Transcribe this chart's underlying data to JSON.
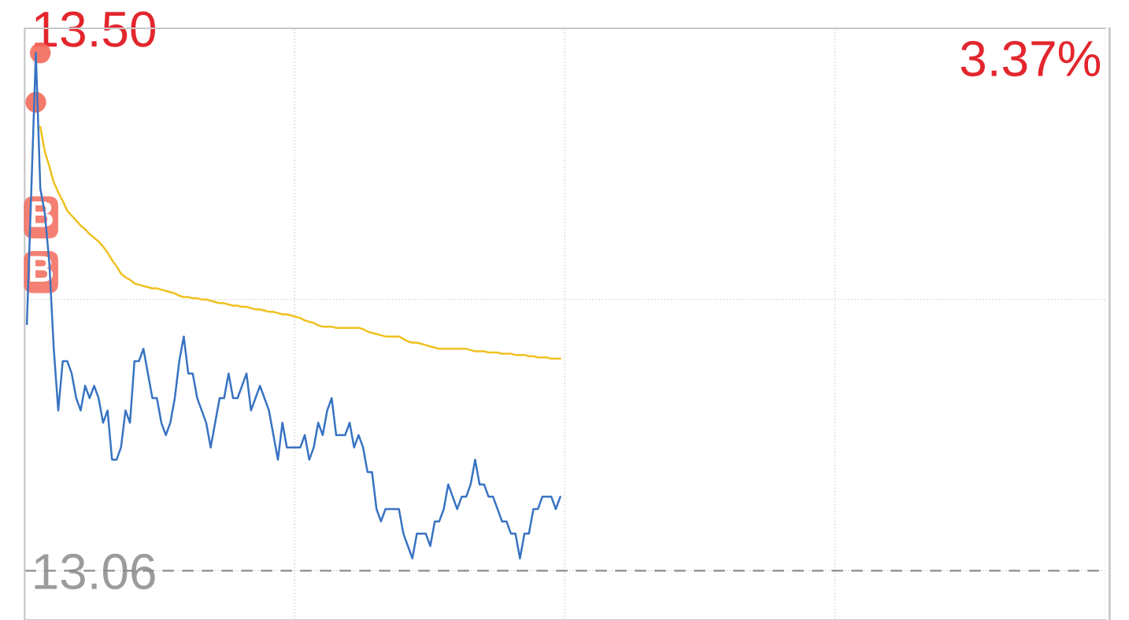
{
  "chart_data": {
    "type": "line",
    "categories": [
      null,
      null,
      null,
      null,
      null,
      null,
      null,
      null,
      null,
      null,
      null,
      null,
      null,
      null,
      null,
      null,
      null,
      null,
      null,
      null,
      null,
      null,
      null,
      null,
      null,
      null,
      null,
      null,
      null,
      null,
      null,
      null,
      null,
      null,
      null,
      null,
      null,
      null,
      null,
      null,
      null,
      null,
      null,
      null,
      null,
      null,
      null,
      null,
      null,
      null,
      null,
      null,
      null,
      null,
      null,
      null,
      null,
      null,
      null,
      null,
      null,
      null,
      null,
      null,
      null,
      null,
      null,
      null,
      null,
      null,
      null,
      null,
      null,
      null,
      null,
      null,
      null,
      null,
      null,
      null,
      null,
      null,
      null,
      null,
      null,
      null,
      null,
      null,
      null,
      null,
      null,
      null,
      null,
      null,
      null,
      null,
      null,
      null,
      null,
      null,
      null,
      null,
      null,
      null,
      null,
      null,
      null,
      null,
      null,
      null,
      null,
      null,
      null,
      null,
      null,
      null,
      null,
      null,
      null,
      null,
      null,
      null,
      null,
      null,
      null,
      null,
      null,
      null,
      null,
      null,
      null,
      null,
      null,
      null,
      null,
      null,
      null,
      null,
      null,
      null,
      null,
      null,
      null,
      null,
      null,
      null,
      null,
      null,
      null,
      null,
      null,
      null,
      null,
      null,
      null,
      null,
      null,
      null,
      null,
      null,
      null,
      null,
      null,
      null,
      null,
      null,
      null,
      null,
      null,
      null,
      null,
      null,
      null,
      null,
      null,
      null,
      null,
      null,
      null,
      null,
      null,
      null,
      null,
      null,
      null,
      null,
      null,
      null,
      null,
      null,
      null,
      null,
      null,
      null,
      null,
      null,
      null,
      null,
      null,
      null,
      null,
      null,
      null,
      null,
      null,
      null,
      null,
      null,
      null,
      null,
      null,
      null,
      null,
      null,
      null,
      null,
      null,
      null,
      null,
      null,
      null,
      null,
      null,
      null,
      null,
      null,
      null,
      null,
      null,
      null,
      null,
      null,
      null,
      null,
      null,
      null,
      null,
      null,
      null,
      null,
      null
    ],
    "series": [
      {
        "color": "#3873c2",
        "values": [
          13.26,
          13.37,
          13.48,
          13.37,
          13.35,
          13.31,
          13.24,
          13.19,
          13.23,
          13.23,
          13.22,
          13.2,
          13.19,
          13.21,
          13.2,
          13.21,
          13.2,
          13.18,
          13.19,
          13.15,
          13.15,
          13.16,
          13.19,
          13.18,
          13.23,
          13.23,
          13.24,
          13.22,
          13.2,
          13.2,
          13.18,
          13.17,
          13.18,
          13.2,
          13.23,
          13.25,
          13.22,
          13.22,
          13.2,
          13.19,
          13.18,
          13.16,
          13.18,
          13.2,
          13.2,
          13.22,
          13.2,
          13.2,
          13.21,
          13.22,
          13.19,
          13.2,
          13.21,
          13.2,
          13.19,
          13.17,
          13.15,
          13.18,
          13.16,
          13.16,
          13.16,
          13.16,
          13.17,
          13.15,
          13.16,
          13.18,
          13.17,
          13.19,
          13.2,
          13.17,
          13.17,
          13.17,
          13.18,
          13.16,
          13.17,
          13.16,
          13.14,
          13.14,
          13.11,
          13.1,
          13.11,
          13.11,
          13.11,
          13.11,
          13.09,
          13.08,
          13.07,
          13.09,
          13.09,
          13.09,
          13.08,
          13.1,
          13.1,
          13.11,
          13.13,
          13.12,
          13.11,
          13.12,
          13.12,
          13.13,
          13.15,
          13.13,
          13.13,
          13.12,
          13.12,
          13.11,
          13.1,
          13.1,
          13.09,
          13.09,
          13.07,
          13.09,
          13.09,
          13.11,
          13.11,
          13.12,
          13.12,
          13.12,
          13.11,
          13.12,
          null,
          null,
          null,
          null,
          null,
          null,
          null,
          null,
          null,
          null,
          null,
          null,
          null,
          null,
          null,
          null,
          null,
          null,
          null,
          null,
          null,
          null,
          null,
          null,
          null,
          null,
          null,
          null,
          null,
          null,
          null,
          null,
          null,
          null,
          null,
          null,
          null,
          null,
          null,
          null,
          null,
          null,
          null,
          null,
          null,
          null,
          null,
          null,
          null,
          null,
          null,
          null,
          null,
          null,
          null,
          null,
          null,
          null,
          null,
          null,
          null,
          null,
          null,
          null,
          null,
          null,
          null,
          null,
          null,
          null,
          null,
          null,
          null,
          null,
          null,
          null,
          null,
          null,
          null,
          null,
          null,
          null,
          null,
          null,
          null,
          null,
          null,
          null,
          null,
          null,
          null,
          null,
          null,
          null,
          null,
          null,
          null,
          null,
          null,
          null,
          null,
          null,
          null,
          null,
          null,
          null,
          null,
          null,
          null,
          null,
          null,
          null,
          null,
          null,
          null,
          null,
          null,
          null,
          null,
          null,
          null
        ]
      },
      {
        "color": "#efc11f",
        "values": [
          null,
          null,
          null,
          13.42,
          13.4,
          13.388,
          13.375,
          13.367,
          13.36,
          13.352,
          13.348,
          13.344,
          13.34,
          13.337,
          13.333,
          13.33,
          13.327,
          13.323,
          13.318,
          13.312,
          13.307,
          13.301,
          13.298,
          13.296,
          13.293,
          13.292,
          13.291,
          13.29,
          13.289,
          13.289,
          13.288,
          13.287,
          13.286,
          13.285,
          13.283,
          13.282,
          13.282,
          13.281,
          13.281,
          13.28,
          13.28,
          13.279,
          13.278,
          13.277,
          13.277,
          13.276,
          13.275,
          13.275,
          13.274,
          13.274,
          13.273,
          13.272,
          13.272,
          13.271,
          13.27,
          13.27,
          13.269,
          13.268,
          13.268,
          13.267,
          13.266,
          13.265,
          13.263,
          13.262,
          13.261,
          13.259,
          13.258,
          13.258,
          13.258,
          13.257,
          13.257,
          13.257,
          13.257,
          13.257,
          13.257,
          13.256,
          13.254,
          13.253,
          13.252,
          13.251,
          13.25,
          13.25,
          13.25,
          13.25,
          13.248,
          13.246,
          13.245,
          13.245,
          13.244,
          13.243,
          13.242,
          13.241,
          13.24,
          13.24,
          13.24,
          13.24,
          13.24,
          13.24,
          13.24,
          13.239,
          13.238,
          13.238,
          13.238,
          13.237,
          13.237,
          13.237,
          13.236,
          13.236,
          13.236,
          13.235,
          13.235,
          13.235,
          13.234,
          13.234,
          13.233,
          13.233,
          13.233,
          13.232,
          13.232,
          13.232,
          null,
          null,
          null,
          null,
          null,
          null,
          null,
          null,
          null,
          null,
          null,
          null,
          null,
          null,
          null,
          null,
          null,
          null,
          null,
          null,
          null,
          null,
          null,
          null,
          null,
          null,
          null,
          null,
          null,
          null,
          null,
          null,
          null,
          null,
          null,
          null,
          null,
          null,
          null,
          null,
          null,
          null,
          null,
          null,
          null,
          null,
          null,
          null,
          null,
          null,
          null,
          null,
          null,
          null,
          null,
          null,
          null,
          null,
          null,
          null,
          null,
          null,
          null,
          null,
          null,
          null,
          null,
          null,
          null,
          null,
          null,
          null,
          null,
          null,
          null,
          null,
          null,
          null,
          null,
          null,
          null,
          null,
          null,
          null,
          null,
          null,
          null,
          null,
          null,
          null,
          null,
          null,
          null,
          null,
          null,
          null,
          null,
          null,
          null,
          null,
          null,
          null,
          null,
          null,
          null,
          null,
          null,
          null,
          null,
          null,
          null,
          null,
          null,
          null,
          null,
          null,
          null,
          null,
          null,
          null,
          null
        ]
      },
      {
        "type": "scatter",
        "color": "#f26a5a",
        "values": [
          null,
          null,
          13.44,
          13.48,
          null,
          null,
          null,
          null,
          null,
          null,
          null,
          null,
          null,
          null,
          null,
          null,
          null,
          null,
          null,
          null,
          null,
          null,
          null,
          null,
          null,
          null,
          null,
          null,
          null,
          null,
          null,
          null,
          null,
          null,
          null,
          null,
          null,
          null,
          null,
          null,
          null,
          null,
          null,
          null,
          null,
          null,
          null,
          null,
          null,
          null,
          null,
          null,
          null,
          null,
          null,
          null,
          null,
          null,
          null,
          null,
          null,
          null,
          null,
          null,
          null,
          null,
          null,
          null,
          null,
          null,
          null,
          null,
          null,
          null,
          null,
          null,
          null,
          null,
          null,
          null,
          null,
          null,
          null,
          null,
          null,
          null,
          null,
          null,
          null,
          null,
          null,
          null,
          null,
          null,
          null,
          null,
          null,
          null,
          null,
          null,
          null,
          null,
          null,
          null,
          null,
          null,
          null,
          null,
          null,
          null,
          null,
          null,
          null,
          null,
          null,
          null,
          null,
          null,
          null,
          null,
          null,
          null,
          null,
          null,
          null,
          null,
          null,
          null,
          null,
          null,
          null,
          null,
          null,
          null,
          null,
          null,
          null,
          null,
          null,
          null,
          null,
          null,
          null,
          null,
          null,
          null,
          null,
          null,
          null,
          null,
          null,
          null,
          null,
          null,
          null,
          null,
          null,
          null,
          null,
          null,
          null,
          null,
          null,
          null,
          null,
          null,
          null,
          null,
          null,
          null,
          null,
          null,
          null,
          null,
          null,
          null,
          null,
          null,
          null,
          null,
          null,
          null,
          null,
          null,
          null,
          null,
          null,
          null,
          null,
          null,
          null,
          null,
          null,
          null,
          null,
          null,
          null,
          null,
          null,
          null,
          null,
          null,
          null,
          null,
          null,
          null,
          null,
          null,
          null,
          null,
          null,
          null,
          null,
          null,
          null,
          null,
          null,
          null,
          null,
          null,
          null,
          null,
          null,
          null,
          null,
          null,
          null,
          null,
          null,
          null,
          null,
          null,
          null,
          null,
          null,
          null,
          null,
          null,
          null,
          null,
          null
        ]
      }
    ],
    "ylim": [
      13.02,
      13.5
    ],
    "yticks": [
      {
        "value": 13.06,
        "label": "13.06"
      },
      {
        "value": 13.28,
        "label": null
      },
      {
        "value": 13.5,
        "label": "13.50"
      }
    ],
    "tick_labels": "y",
    "grid": true,
    "ref_lines": [
      {
        "axis": "y",
        "value": 13.06,
        "color": "#8c8c8c",
        "line_style": "dashed"
      }
    ],
    "annotations": [
      "B",
      "B",
      "3.37%"
    ]
  }
}
